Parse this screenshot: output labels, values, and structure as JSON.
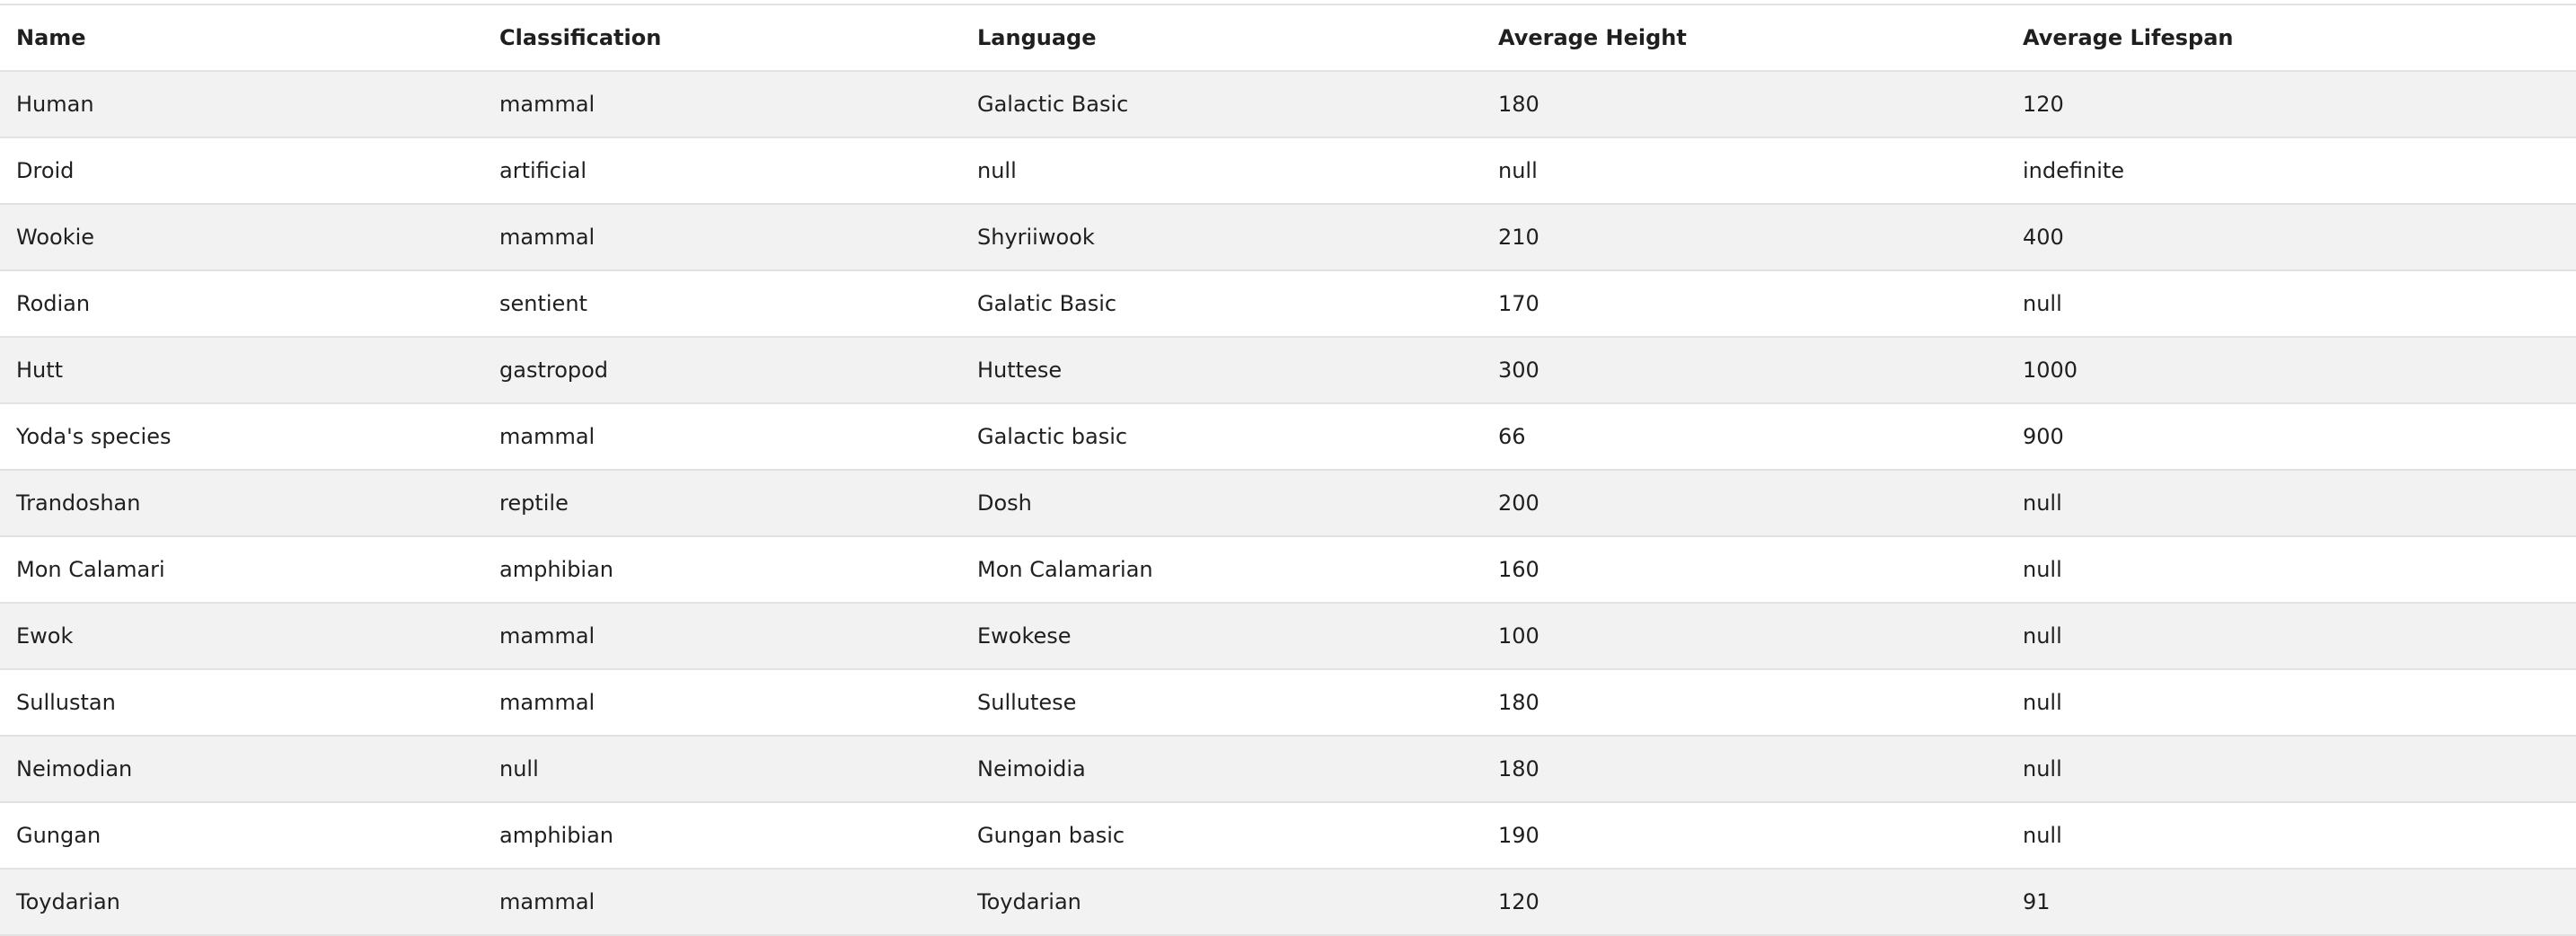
{
  "table": {
    "columns": [
      "Name",
      "Classification",
      "Language",
      "Average Height",
      "Average Lifespan"
    ],
    "rows": [
      [
        "Human",
        "mammal",
        "Galactic Basic",
        "180",
        "120"
      ],
      [
        "Droid",
        "artificial",
        "null",
        "null",
        "indefinite"
      ],
      [
        "Wookie",
        "mammal",
        "Shyriiwook",
        "210",
        "400"
      ],
      [
        "Rodian",
        "sentient",
        "Galatic Basic",
        "170",
        "null"
      ],
      [
        "Hutt",
        "gastropod",
        "Huttese",
        "300",
        "1000"
      ],
      [
        "Yoda's species",
        "mammal",
        "Galactic basic",
        "66",
        "900"
      ],
      [
        "Trandoshan",
        "reptile",
        "Dosh",
        "200",
        "null"
      ],
      [
        "Mon Calamari",
        "amphibian",
        "Mon Calamarian",
        "160",
        "null"
      ],
      [
        "Ewok",
        "mammal",
        "Ewokese",
        "100",
        "null"
      ],
      [
        "Sullustan",
        "mammal",
        "Sullutese",
        "180",
        "null"
      ],
      [
        "Neimodian",
        "null",
        "Neimoidia",
        "180",
        "null"
      ],
      [
        "Gungan",
        "amphibian",
        "Gungan basic",
        "190",
        "null"
      ],
      [
        "Toydarian",
        "mammal",
        "Toydarian",
        "120",
        "91"
      ]
    ]
  },
  "colors": {
    "stripe": "#f2f2f2",
    "border": "#e2e2e2",
    "text": "#1f1f1f"
  }
}
